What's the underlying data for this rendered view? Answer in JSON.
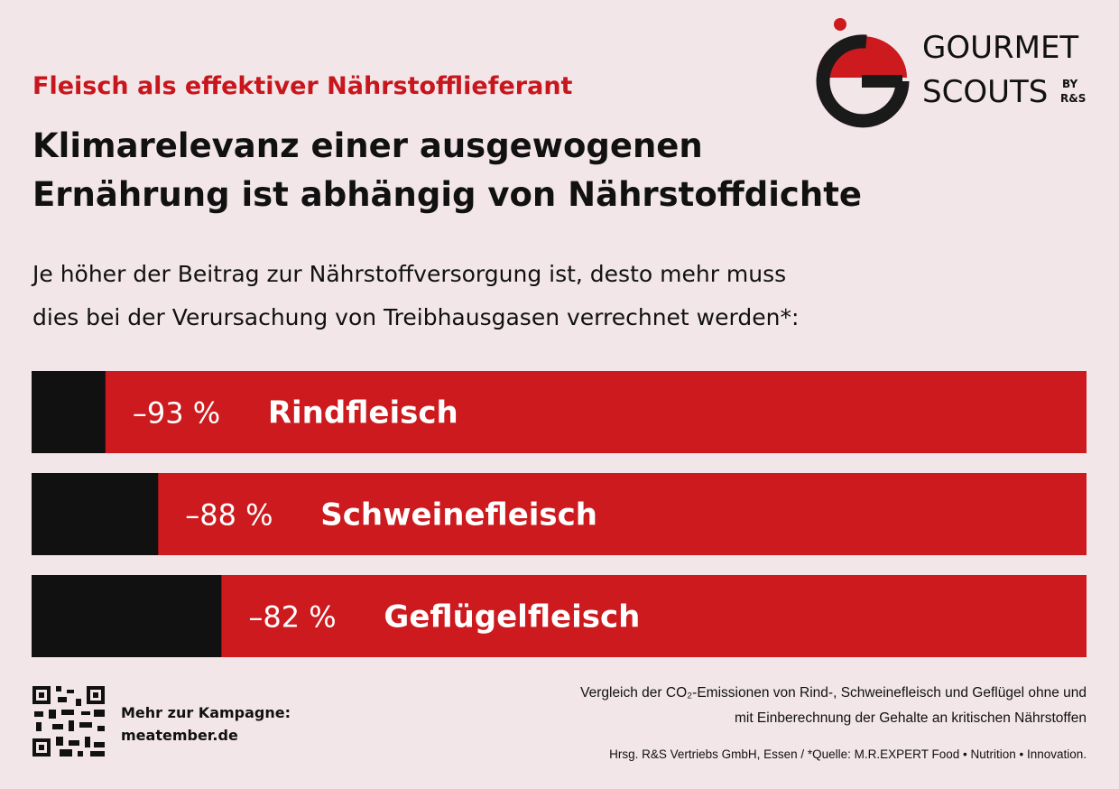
{
  "chart_data": {
    "type": "bar",
    "kicker": "Fleisch als effektiver Nährstofflieferant",
    "title": [
      "Klimarelevanz einer ausgewogenen",
      "Ernährung ist abhängig von Nährstoffdichte"
    ],
    "subtitle": [
      "Je höher der Beitrag zur Nährstoffversorgung ist, desto mehr muss",
      "dies bei der Verursachung von Treibhausgasen verrechnet werden*:"
    ],
    "categories": [
      "Rindfleisch",
      "Schweinefleisch",
      "Geflügelfleisch"
    ],
    "values": [
      -93,
      -88,
      -82
    ],
    "value_labels": [
      "–93 %",
      "–88 %",
      "–82 %"
    ],
    "color": "#cc1a1e",
    "xlim": [
      -100,
      0
    ],
    "logo": {
      "line1": "GOURMET",
      "line2": "SCOUTS",
      "by": "BY",
      "brand": "R&S"
    },
    "qr": {
      "label": "Mehr zur Kampagne:",
      "url": "meatember.de"
    },
    "notes": [
      "Vergleich der CO₂-Emissionen von Rind-, Schweinefleisch und Geflügel ohne und",
      "mit Einberechnung der Gehalte an kritischen Nährstoffen"
    ],
    "source": "Hrsg. R&S Vertriebs GmbH, Essen / *Quelle: M.R.EXPERT Food • Nutrition • Innovation."
  }
}
